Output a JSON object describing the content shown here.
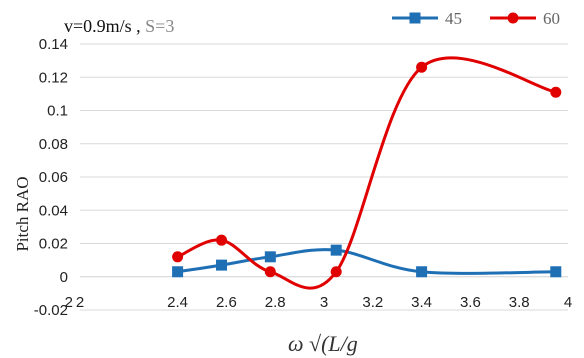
{
  "chart_data": {
    "type": "line",
    "title": {
      "left": "v=0.9m/s , ",
      "right": "S=3"
    },
    "xlabel": "ω √(L/g",
    "ylabel": "Pitch RAO",
    "xlim": [
      2,
      4
    ],
    "ylim": [
      -0.02,
      0.14
    ],
    "x_ticks": [
      "2",
      "2.4",
      "2.6",
      "2.8",
      "3",
      "3.2",
      "3.4",
      "3.6",
      "3.8",
      "4"
    ],
    "x_tick_values": [
      2.0,
      2.4,
      2.6,
      2.8,
      3.0,
      3.2,
      3.4,
      3.6,
      3.8,
      4.0
    ],
    "x_prefix_tick": "2",
    "y_ticks": [
      "-0.02",
      "0",
      "0.02",
      "0.04",
      "0.06",
      "0.08",
      "0.1",
      "0.12",
      "0.14"
    ],
    "y_tick_values": [
      -0.02,
      0,
      0.02,
      0.04,
      0.06,
      0.08,
      0.1,
      0.12,
      0.14
    ],
    "grid": "horizontal",
    "legend_position": "top-right",
    "series": [
      {
        "name": "45",
        "color": "#1F6FB5",
        "marker": "square",
        "x": [
          2.4,
          2.58,
          2.78,
          3.05,
          3.4,
          3.95
        ],
        "y": [
          0.003,
          0.007,
          0.012,
          0.016,
          0.003,
          0.003
        ]
      },
      {
        "name": "60",
        "color": "#E00000",
        "marker": "circle",
        "x": [
          2.4,
          2.58,
          2.78,
          3.05,
          3.4,
          3.95
        ],
        "y": [
          0.012,
          0.022,
          0.003,
          0.003,
          0.126,
          0.111
        ]
      }
    ]
  }
}
